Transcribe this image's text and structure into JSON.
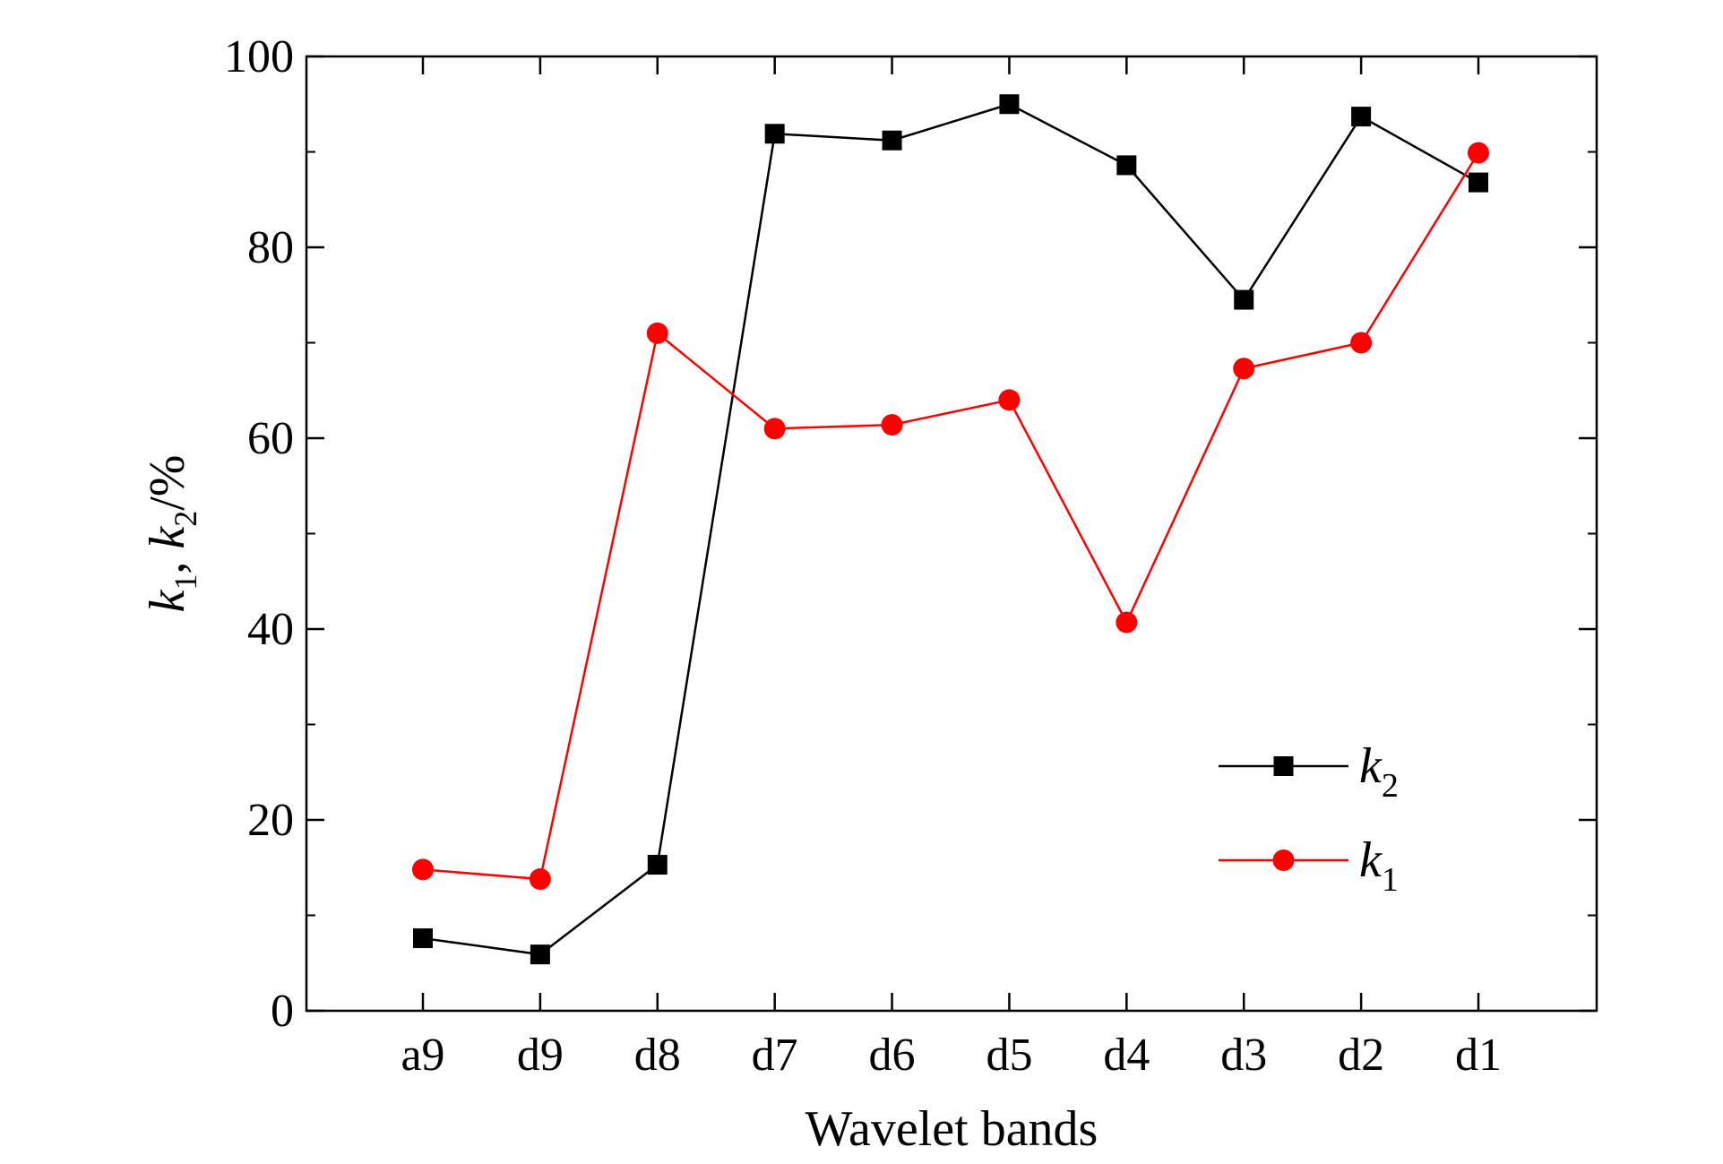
{
  "chart_data": {
    "type": "line",
    "title": "",
    "xlabel": "Wavelet bands",
    "ylabel": {
      "parts": [
        {
          "text": "k",
          "style": "italic"
        },
        {
          "text": "1",
          "style": "sub"
        },
        {
          "text": ", ",
          "style": "normal"
        },
        {
          "text": "k",
          "style": "italic"
        },
        {
          "text": "2",
          "style": "sub"
        },
        {
          "text": "/%",
          "style": "normal"
        }
      ]
    },
    "categories": [
      "a9",
      "d9",
      "d8",
      "d7",
      "d6",
      "d5",
      "d4",
      "d3",
      "d2",
      "d1"
    ],
    "ylim": [
      0,
      100
    ],
    "yticks": [
      0,
      20,
      40,
      60,
      80,
      100
    ],
    "grid": false,
    "legend_position": "lower-right",
    "series": [
      {
        "name": "k2",
        "legend_base": "k",
        "legend_sub": "2",
        "color": "#000000",
        "marker": "square",
        "values": [
          7.6,
          5.9,
          15.3,
          91.9,
          91.2,
          95.0,
          88.6,
          74.5,
          93.7,
          86.8
        ]
      },
      {
        "name": "k1",
        "legend_base": "k",
        "legend_sub": "1",
        "color": "#ff0000",
        "marker": "circle",
        "values": [
          14.8,
          13.8,
          71.0,
          61.0,
          61.4,
          64.0,
          40.7,
          67.3,
          70.0,
          89.9
        ]
      }
    ]
  }
}
